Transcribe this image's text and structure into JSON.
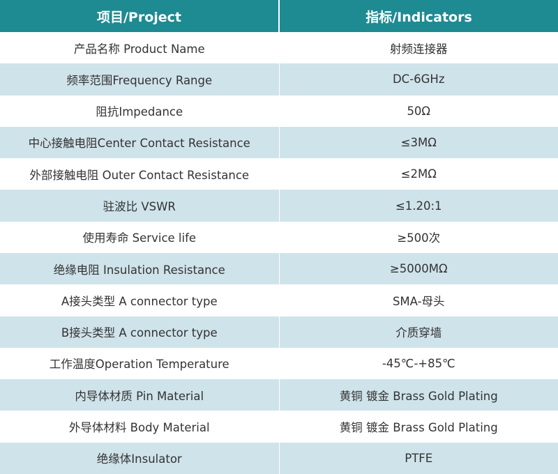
{
  "table": {
    "headers": {
      "project": "项目/Project",
      "indicators": "指标/Indicators"
    },
    "rows": [
      {
        "project": "产品名称 Product Name",
        "indicator": "射频连接器"
      },
      {
        "project": "频率范围Frequency Range",
        "indicator": "DC-6GHz"
      },
      {
        "project": "阻抗Impedance",
        "indicator": "50Ω"
      },
      {
        "project": "中心接触电阻Center Contact Resistance",
        "indicator": "≤3MΩ"
      },
      {
        "project": "外部接触电阻 Outer Contact Resistance",
        "indicator": "≤2MΩ"
      },
      {
        "project": "驻波比 VSWR",
        "indicator": "≤1.20:1"
      },
      {
        "project": "使用寿命 Service life",
        "indicator": "≥500次"
      },
      {
        "project": "绝缘电阻 Insulation Resistance",
        "indicator": "≥5000MΩ"
      },
      {
        "project": "A接头类型 A connector type",
        "indicator": "SMA-母头"
      },
      {
        "project": "B接头类型 A connector type",
        "indicator": "介质穿墙"
      },
      {
        "project": "工作温度Operation Temperature",
        "indicator": "-45℃-+85℃"
      },
      {
        "project": "内导体材质 Pin Material",
        "indicator": "黄铜 镀金  Brass Gold Plating"
      },
      {
        "project": "外导体材料 Body Material",
        "indicator": "黄铜 镀金  Brass Gold Plating"
      },
      {
        "project": "绝缘体Insulator",
        "indicator": "PTFE"
      }
    ]
  },
  "colors": {
    "header_bg": "#1e8a92",
    "header_text": "#ffffff",
    "row_alt_bg": "#cfe3ea",
    "row_bg": "#ffffff",
    "cell_text": "#333333"
  }
}
